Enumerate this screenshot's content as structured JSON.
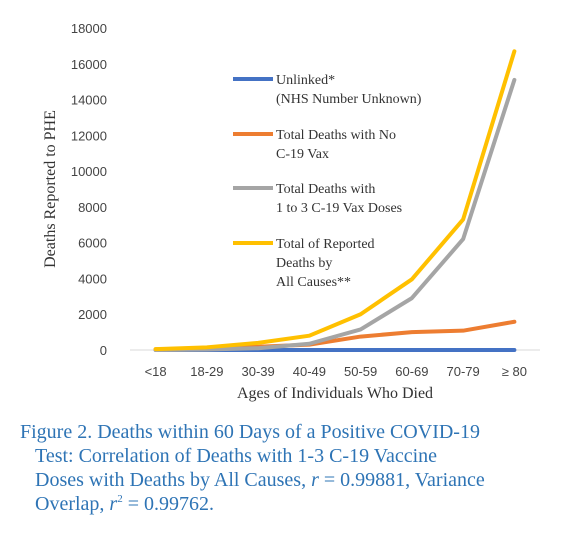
{
  "chart_data": {
    "type": "line",
    "categories": [
      "<18",
      "18-29",
      "30-39",
      "40-49",
      "50-59",
      "60-69",
      "70-79",
      "≥ 80"
    ],
    "series": [
      {
        "name_lines": [
          "Unlinked*",
          "(NHS Number Unknown)"
        ],
        "color": "#4472c4",
        "values": [
          0,
          0,
          0,
          0,
          0,
          0,
          0,
          0
        ]
      },
      {
        "name_lines": [
          "Total Deaths with No",
          "C-19 Vax"
        ],
        "color": "#ed7d31",
        "values": [
          40,
          100,
          180,
          300,
          750,
          1000,
          1080,
          1580
        ]
      },
      {
        "name_lines": [
          "Total Deaths with",
          "1 to 3 C-19 Vax Doses"
        ],
        "color": "#a5a5a5",
        "values": [
          0,
          30,
          100,
          350,
          1150,
          2900,
          6200,
          15100
        ]
      },
      {
        "name_lines": [
          "Total of Reported",
          "Deaths by",
          "All Causes**"
        ],
        "color": "#ffc000",
        "values": [
          50,
          150,
          400,
          800,
          2000,
          3950,
          7300,
          16700
        ]
      }
    ],
    "xlabel": "Ages of Individuals Who Died",
    "ylabel": "Deaths Reported to PHE",
    "ylim": [
      0,
      18000
    ],
    "yticks": [
      "0",
      "2000",
      "4000",
      "6000",
      "8000",
      "10000",
      "12000",
      "14000",
      "16000",
      "18000"
    ],
    "grid": false,
    "legend": "inside"
  },
  "caption": {
    "line1": "Figure 2. Deaths within 60 Days of a Positive COVID-19",
    "line2": "Test: Correlation of Deaths with 1-3 C-19 Vaccine",
    "line3a": "Doses with Deaths by All Causes, ",
    "r_symbol": "r",
    "line3b": " = 0.99881, Variance",
    "line4a": "Overlap, ",
    "r2_symbol": "r",
    "r2_exp": "2",
    "line4b": " = 0.99762."
  }
}
